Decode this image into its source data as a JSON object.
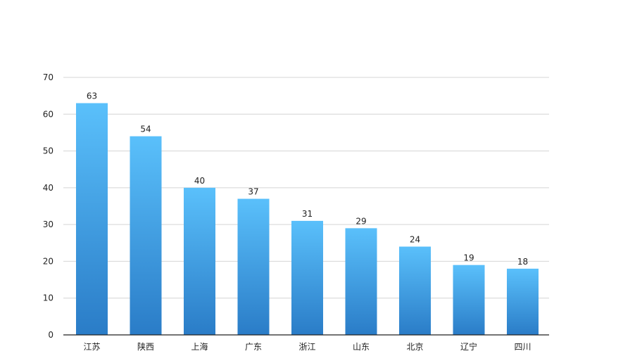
{
  "chart_data": {
    "type": "bar",
    "title": "",
    "xlabel": "",
    "ylabel": "",
    "categories": [
      "江苏",
      "陕西",
      "上海",
      "广东",
      "浙江",
      "山东",
      "北京",
      "辽宁",
      "四川"
    ],
    "values": [
      63,
      54,
      40,
      37,
      31,
      29,
      24,
      19,
      18
    ],
    "ylim": [
      0,
      70
    ],
    "yticks": [
      0,
      10,
      20,
      30,
      40,
      50,
      60,
      70
    ],
    "grid": true,
    "legend": "none",
    "data_labels": true,
    "colors": {
      "bar_top": "#5ac0fb",
      "bar_bottom": "#2a7cc7",
      "grid": "#d4d4d4",
      "axis": "#222222",
      "text": "#222222"
    }
  }
}
